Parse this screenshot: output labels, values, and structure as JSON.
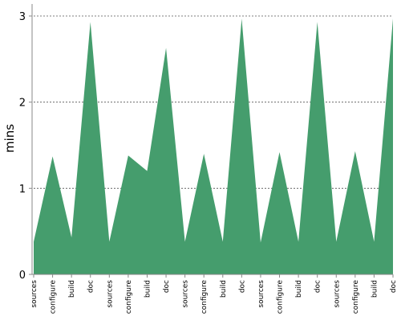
{
  "chart_data": {
    "type": "area",
    "title": "",
    "xlabel": "",
    "ylabel": "mins",
    "ylim": [
      0,
      3
    ],
    "yticks": [
      0,
      1,
      2,
      3
    ],
    "grid": true,
    "categories": [
      "sources",
      "configure",
      "build",
      "doc",
      "sources",
      "configure",
      "build",
      "doc",
      "sources",
      "configure",
      "build",
      "doc",
      "sources",
      "configure",
      "build",
      "doc",
      "sources",
      "configure",
      "build",
      "doc"
    ],
    "series": [
      {
        "color": "#459d6d",
        "values": [
          0.38,
          1.37,
          0.43,
          2.93,
          0.38,
          1.38,
          1.2,
          2.63,
          0.38,
          1.4,
          0.38,
          2.97,
          0.37,
          1.42,
          0.38,
          2.93,
          0.38,
          1.43,
          0.38,
          2.97
        ]
      }
    ]
  }
}
